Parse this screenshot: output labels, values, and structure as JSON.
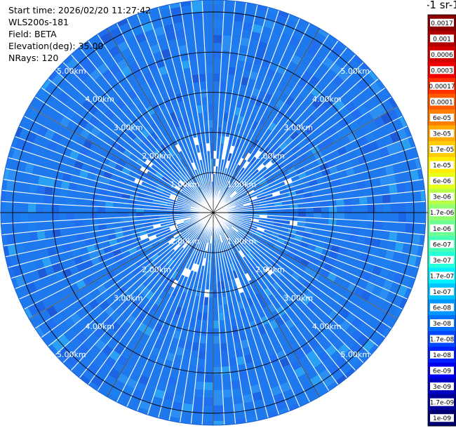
{
  "header": {
    "start_time": "Start time: 2026/02/20 11:27:42",
    "instrument": "WLS200s-181",
    "field": "Field: BETA",
    "elevation": "Elevation(deg): 35.00",
    "nrays": "NRays: 120"
  },
  "colorbar": {
    "unit_label": "-1 sr-1",
    "labels": [
      "0.0017",
      "0.001",
      "0.0006",
      "0.0003",
      "0.00017",
      "0.0001",
      "6e-05",
      "3e-05",
      "1.7e-05",
      "1e-05",
      "6e-06",
      "3e-06",
      "1.7e-06",
      "1e-06",
      "6e-07",
      "3e-07",
      "1.7e-07",
      "1e-07",
      "6e-08",
      "3e-08",
      "1.7e-08",
      "1e-08",
      "6e-09",
      "3e-09",
      "1.7e-09",
      "1e-09"
    ],
    "colors": [
      "#8b0000",
      "#b00000",
      "#d40000",
      "#f00000",
      "#ff3000",
      "#ff5a00",
      "#ff8000",
      "#ffaa00",
      "#ffcc00",
      "#ffee00",
      "#e8ff1a",
      "#b8ff48",
      "#90ff70",
      "#6cff94",
      "#48ffb8",
      "#24ffdc",
      "#00f0ff",
      "#00c4ff",
      "#0098ff",
      "#0070ff",
      "#0048ff",
      "#0020ff",
      "#0000ee",
      "#0000c0",
      "#000098",
      "#000070"
    ]
  },
  "chart_data": {
    "type": "heatmap",
    "projection": "polar (PPI scan)",
    "field": "BETA",
    "elevation_deg": 35.0,
    "n_rays": 120,
    "range_rings_km": [
      1,
      2,
      3,
      4,
      5
    ],
    "range_ring_labels": [
      "1.00km",
      "2.00km",
      "3.00km",
      "4.00km",
      "5.00km"
    ],
    "dominant_value_range": [
      "3e-08",
      "1.7e-08"
    ],
    "colorbar_scale": "log",
    "colorbar_range": [
      "1e-09",
      "0.0017"
    ],
    "grid": true
  }
}
